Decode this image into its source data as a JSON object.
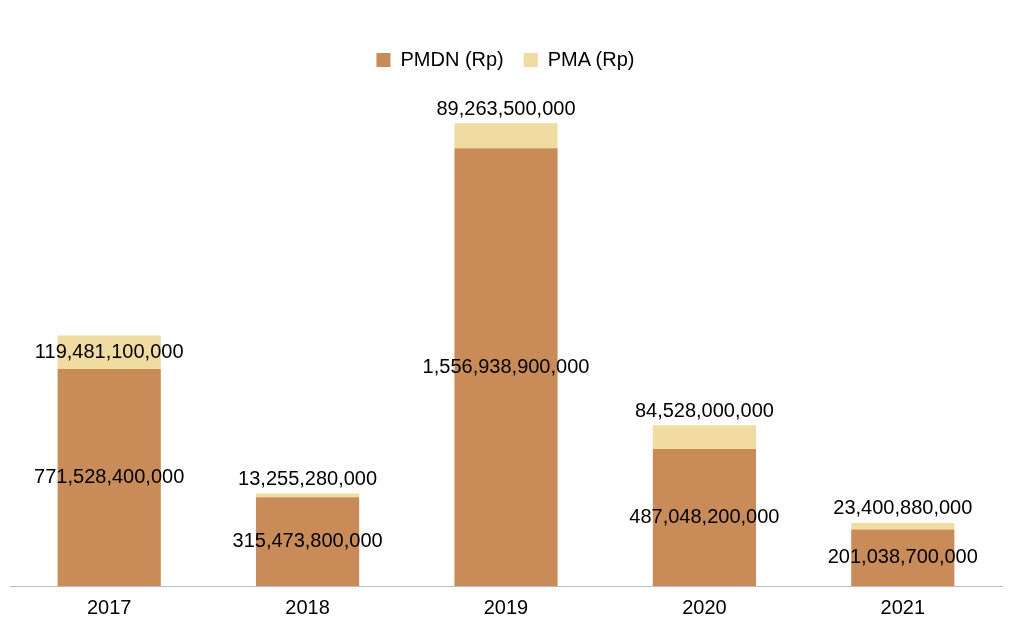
{
  "chart_data": {
    "type": "bar",
    "stacked": true,
    "legend": "top",
    "grid": false,
    "tick_labels": "x",
    "categories": [
      "2017",
      "2018",
      "2019",
      "2020",
      "2021"
    ],
    "series": [
      {
        "name": "PMDN (Rp)",
        "color": "#c98b57",
        "values": [
          771528400000,
          315473800000,
          1556938900000,
          487048200000,
          201038700000
        ],
        "value_labels": [
          "771,528,400,000",
          "315,473,800,000",
          "1,556,938,900,000",
          "487,048,200,000",
          "201,038,700,000"
        ]
      },
      {
        "name": "PMA (Rp)",
        "color": "#f0dba0",
        "values": [
          119481100000,
          13255280000,
          89263500000,
          84528000000,
          23400880000
        ],
        "value_labels": [
          "119,481,100,000",
          "13,255,280,000",
          "89,263,500,000",
          "84,528,000,000",
          "23,400,880,000"
        ]
      }
    ]
  }
}
